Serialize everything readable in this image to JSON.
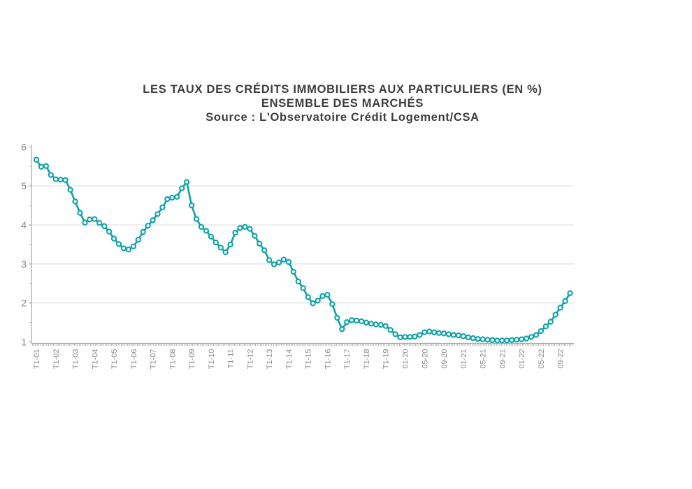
{
  "title": {
    "line1": "LES TAUX DES CRÉDITS IMMOBILIERS AUX PARTICULIERS (EN %)",
    "line2": "ENSEMBLE DES MARCHÉS",
    "line3": "Source : L'Observatoire Crédit Logement/CSA",
    "color": "#3d3d3d"
  },
  "chart_data": {
    "type": "line",
    "title": "LES TAUX DES CRÉDITS IMMOBILIERS AUX PARTICULIERS (EN %) — ENSEMBLE DES MARCHÉS",
    "source": "L'Observatoire Crédit Logement/CSA",
    "unit": "%",
    "frequency_note": "quarterly T1-01 to T4-19, monthly 01-20 to 11-22",
    "x_tick_labels": [
      "T1-01",
      "T1-02",
      "T1-03",
      "T1-04",
      "T1-05",
      "T1-06",
      "T1-07",
      "T1-08",
      "T1-09",
      "T1-10",
      "T1-11",
      "T1-12",
      "T1-13",
      "T1-14",
      "T1-15",
      "T1-16",
      "T1-17",
      "T1-18",
      "T1-19",
      "01-20",
      "05-20",
      "09-20",
      "01-21",
      "05-21",
      "09-21",
      "01-22",
      "05-22",
      "09-22"
    ],
    "x_tick_point_indices": [
      0,
      4,
      8,
      12,
      16,
      20,
      24,
      28,
      32,
      36,
      40,
      44,
      48,
      52,
      56,
      60,
      64,
      68,
      72,
      76,
      80,
      84,
      88,
      92,
      96,
      100,
      104,
      108
    ],
    "values": [
      5.67,
      5.49,
      5.51,
      5.28,
      5.17,
      5.16,
      5.15,
      4.9,
      4.6,
      4.31,
      4.06,
      4.14,
      4.15,
      4.05,
      3.97,
      3.83,
      3.65,
      3.51,
      3.4,
      3.37,
      3.45,
      3.62,
      3.82,
      3.98,
      4.12,
      4.28,
      4.45,
      4.66,
      4.7,
      4.72,
      4.94,
      5.1,
      4.5,
      4.15,
      3.95,
      3.85,
      3.7,
      3.55,
      3.42,
      3.3,
      3.5,
      3.8,
      3.92,
      3.95,
      3.9,
      3.72,
      3.52,
      3.35,
      3.1,
      2.99,
      3.04,
      3.11,
      3.05,
      2.8,
      2.55,
      2.38,
      2.15,
      1.99,
      2.06,
      2.18,
      2.21,
      1.97,
      1.62,
      1.33,
      1.51,
      1.56,
      1.55,
      1.53,
      1.5,
      1.47,
      1.45,
      1.44,
      1.41,
      1.31,
      1.2,
      1.12,
      1.13,
      1.13,
      1.14,
      1.18,
      1.25,
      1.27,
      1.25,
      1.23,
      1.22,
      1.2,
      1.18,
      1.17,
      1.15,
      1.12,
      1.1,
      1.08,
      1.07,
      1.06,
      1.05,
      1.04,
      1.04,
      1.04,
      1.05,
      1.06,
      1.07,
      1.09,
      1.13,
      1.18,
      1.28,
      1.4,
      1.52,
      1.7,
      1.88,
      2.05,
      2.25
    ],
    "ylim": [
      1,
      6
    ],
    "y_ticks": [
      1,
      2,
      3,
      4,
      5,
      6
    ],
    "y_minor_ticks": [
      1.5,
      2.5,
      3.5,
      4.5,
      5.5
    ],
    "grid_values": [
      2,
      3,
      4,
      5
    ],
    "legend": "none",
    "line_color": "#0da2a6",
    "marker_style": "open-circle",
    "marker_fill": "#ffffff",
    "grid_color": "#dcdcdc",
    "axis_color": "#a6a6a6",
    "tick_label_color": "#8c8c8c"
  }
}
